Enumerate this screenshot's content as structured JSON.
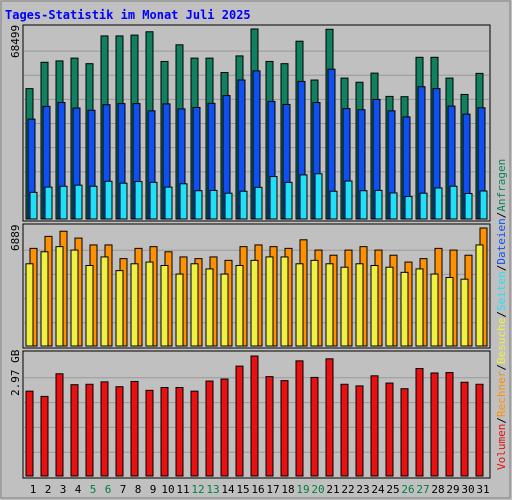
{
  "title": "Tages-Statistik im Monat Juli 2025",
  "colors": {
    "background": "#c0c0c0",
    "title": "#0000ff",
    "weekday_label": "#000000",
    "weekend_label": "#008040",
    "anfragen": "#108060",
    "dateien": "#1050f0",
    "seiten": "#20e0f8",
    "besuche": "#f0f040",
    "rechner": "#ff9000",
    "volumen": "#e81010",
    "separator": "#000000"
  },
  "right_legend": {
    "volumen": "Volumen",
    "rechner": "Rechner",
    "besuche": "Besuche",
    "seiten": "Seiten",
    "dateien": "Dateien",
    "anfragen": "Anfragen",
    "separator": "/"
  },
  "panel_labels": {
    "hits_max": "68499",
    "visits_max": "6889",
    "volume_max": "2.97 GB"
  },
  "chart_data": [
    {
      "type": "bar",
      "name": "hits",
      "categories": [
        "1",
        "2",
        "3",
        "4",
        "5",
        "6",
        "7",
        "8",
        "9",
        "10",
        "11",
        "12",
        "13",
        "14",
        "15",
        "16",
        "17",
        "18",
        "19",
        "20",
        "21",
        "22",
        "23",
        "24",
        "25",
        "26",
        "27",
        "28",
        "29",
        "30",
        "31"
      ],
      "weekend_days": [
        5,
        6,
        12,
        13,
        19,
        20,
        26,
        27
      ],
      "ylim": [
        0,
        68499
      ],
      "series": [
        {
          "name": "Anfragen",
          "values": [
            47000,
            56500,
            57000,
            58000,
            56000,
            66000,
            66000,
            66300,
            67500,
            56800,
            62800,
            58000,
            58000,
            52800,
            58800,
            68499,
            56800,
            56000,
            64100,
            50100,
            68400,
            50800,
            49300,
            52600,
            44200,
            44100,
            58300,
            58300,
            50800,
            44900,
            52500
          ]
        },
        {
          "name": "Dateien",
          "values": [
            36000,
            40600,
            42000,
            40000,
            39200,
            41200,
            41600,
            41600,
            39000,
            41500,
            39700,
            40200,
            41700,
            44500,
            50100,
            53400,
            42400,
            41300,
            49600,
            42000,
            54000,
            39800,
            39400,
            43100,
            39000,
            36800,
            47700,
            47000,
            40700,
            37800,
            40100
          ]
        },
        {
          "name": "Seiten",
          "values": [
            9600,
            11500,
            11800,
            12200,
            11800,
            13600,
            12900,
            13500,
            13200,
            11500,
            12700,
            10200,
            10300,
            9300,
            10000,
            11400,
            15300,
            13200,
            15900,
            16300,
            10000,
            13700,
            10200,
            10300,
            9400,
            8100,
            9300,
            11200,
            11800,
            9200,
            10100
          ]
        }
      ]
    },
    {
      "type": "bar",
      "name": "visits",
      "categories": [
        "1",
        "2",
        "3",
        "4",
        "5",
        "6",
        "7",
        "8",
        "9",
        "10",
        "11",
        "12",
        "13",
        "14",
        "15",
        "16",
        "17",
        "18",
        "19",
        "20",
        "21",
        "22",
        "23",
        "24",
        "25",
        "26",
        "27",
        "28",
        "29",
        "30",
        "31"
      ],
      "ylim": [
        0,
        6889
      ],
      "series": [
        {
          "name": "Rechner",
          "values": [
            5700,
            6400,
            6700,
            6300,
            5900,
            5900,
            5100,
            5700,
            5800,
            5500,
            5200,
            5100,
            5200,
            5000,
            5800,
            5900,
            5800,
            5700,
            6200,
            5600,
            5300,
            5600,
            5800,
            5600,
            5300,
            4900,
            5100,
            5700,
            5600,
            5300,
            6889
          ]
        },
        {
          "name": "Besuche",
          "values": [
            4800,
            5500,
            5800,
            5600,
            4700,
            5200,
            4400,
            4800,
            4900,
            4700,
            4200,
            4800,
            4500,
            4200,
            4700,
            5000,
            5200,
            5200,
            4800,
            5000,
            4800,
            4600,
            4800,
            4700,
            4600,
            4300,
            4500,
            4200,
            4000,
            3900,
            5900
          ]
        }
      ]
    },
    {
      "type": "bar",
      "name": "volume",
      "categories": [
        "1",
        "2",
        "3",
        "4",
        "5",
        "6",
        "7",
        "8",
        "9",
        "10",
        "11",
        "12",
        "13",
        "14",
        "15",
        "16",
        "17",
        "18",
        "19",
        "20",
        "21",
        "22",
        "23",
        "24",
        "25",
        "26",
        "27",
        "28",
        "29",
        "30",
        "31"
      ],
      "ylim": [
        0,
        2.97
      ],
      "unit": "GB",
      "series": [
        {
          "name": "Volumen",
          "values": [
            2.1,
            1.97,
            2.53,
            2.26,
            2.27,
            2.33,
            2.21,
            2.34,
            2.12,
            2.19,
            2.19,
            2.1,
            2.35,
            2.4,
            2.72,
            2.97,
            2.46,
            2.36,
            2.85,
            2.44,
            2.9,
            2.27,
            2.23,
            2.48,
            2.3,
            2.16,
            2.66,
            2.55,
            2.56,
            2.32,
            2.27
          ]
        }
      ]
    }
  ]
}
